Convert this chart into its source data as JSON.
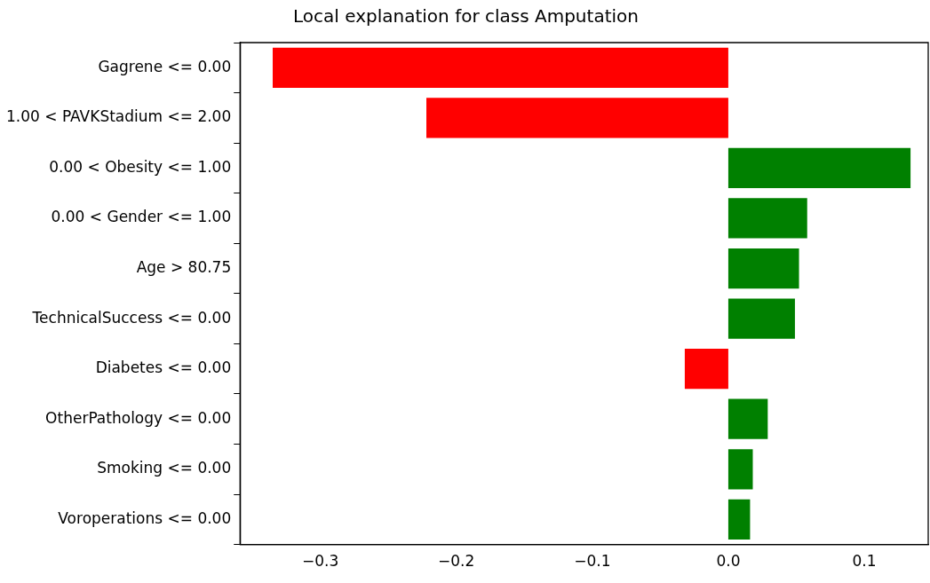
{
  "chart_data": {
    "type": "bar",
    "orientation": "horizontal",
    "title": "Local explanation for class Amputation",
    "categories": [
      "Gagrene <= 0.00",
      "1.00 < PAVKStadium <= 2.00",
      "0.00 < Obesity <= 1.00",
      "0.00 < Gender <= 1.00",
      "Age > 80.75",
      "TechnicalSuccess <= 0.00",
      "Diabetes <= 0.00",
      "OtherPathology <= 0.00",
      "Smoking <= 0.00",
      "Voroperations <= 0.00"
    ],
    "values": [
      -0.335,
      -0.222,
      0.134,
      0.058,
      0.052,
      0.049,
      -0.032,
      0.029,
      0.018,
      0.016
    ],
    "colors": [
      "#ff0000",
      "#ff0000",
      "#008000",
      "#008000",
      "#008000",
      "#008000",
      "#ff0000",
      "#008000",
      "#008000",
      "#008000"
    ],
    "xlim": [
      -0.359,
      0.147
    ],
    "xticks": [
      {
        "value": -0.3,
        "label": "−0.3"
      },
      {
        "value": -0.2,
        "label": "−0.2"
      },
      {
        "value": -0.1,
        "label": "−0.1"
      },
      {
        "value": 0,
        "label": "0.0"
      },
      {
        "value": 0.1,
        "label": "0.1"
      }
    ],
    "grid": false,
    "legend": false
  }
}
